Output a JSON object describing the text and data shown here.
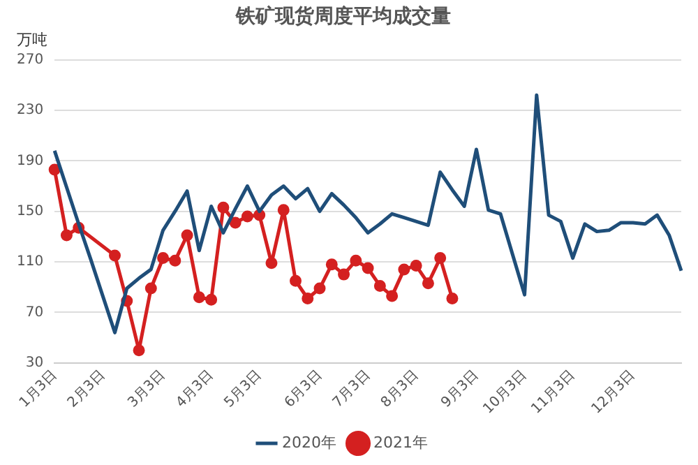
{
  "chart_data": {
    "type": "line",
    "title": "铁矿现货周度平均成交量",
    "ylabel": "万吨",
    "categories": [
      "1月3日",
      null,
      null,
      null,
      "2月3日",
      null,
      null,
      null,
      null,
      "3月3日",
      null,
      null,
      null,
      "4月3日",
      null,
      null,
      null,
      "5月3日",
      null,
      null,
      null,
      null,
      "6月3日",
      null,
      null,
      null,
      "7月3日",
      null,
      null,
      null,
      "8月3日",
      null,
      null,
      null,
      null,
      "9月3日",
      null,
      null,
      null,
      "10月3日",
      null,
      null,
      null,
      "11月3日",
      null,
      null,
      null,
      null,
      "12月3日",
      null,
      null,
      null,
      null
    ],
    "series": [
      {
        "name": "2020年",
        "color": "#1f4e79",
        "marker": "none",
        "values": [
          198,
          169,
          140,
          112,
          83,
          54,
          89,
          97,
          104,
          135,
          150,
          166,
          119,
          154,
          133,
          152,
          170,
          150,
          163,
          170,
          160,
          168,
          150,
          164,
          155,
          145,
          133,
          140,
          148,
          145,
          142,
          139,
          181,
          167,
          154,
          199,
          151,
          148,
          116,
          84,
          242,
          147,
          142,
          113,
          140,
          134,
          135,
          141,
          141,
          140,
          147,
          131,
          103
        ]
      },
      {
        "name": "2021年",
        "color": "#d42020",
        "marker": "circle",
        "values": [
          183,
          131,
          137,
          null,
          null,
          115,
          79,
          40,
          89,
          113,
          111,
          131,
          82,
          80,
          153,
          141,
          146,
          147,
          109,
          151,
          95,
          81,
          89,
          108,
          100,
          111,
          105,
          91,
          83,
          104,
          107,
          93,
          113,
          81,
          null,
          null,
          null,
          null,
          null,
          null,
          null,
          null,
          null,
          null,
          null,
          null,
          null,
          null,
          null,
          null,
          null,
          null,
          null
        ]
      }
    ],
    "ylim": [
      30,
      270
    ],
    "yticks": [
      30,
      70,
      110,
      150,
      190,
      230,
      270
    ],
    "grid": "y",
    "legend": "bottom",
    "line_style": "solid"
  }
}
